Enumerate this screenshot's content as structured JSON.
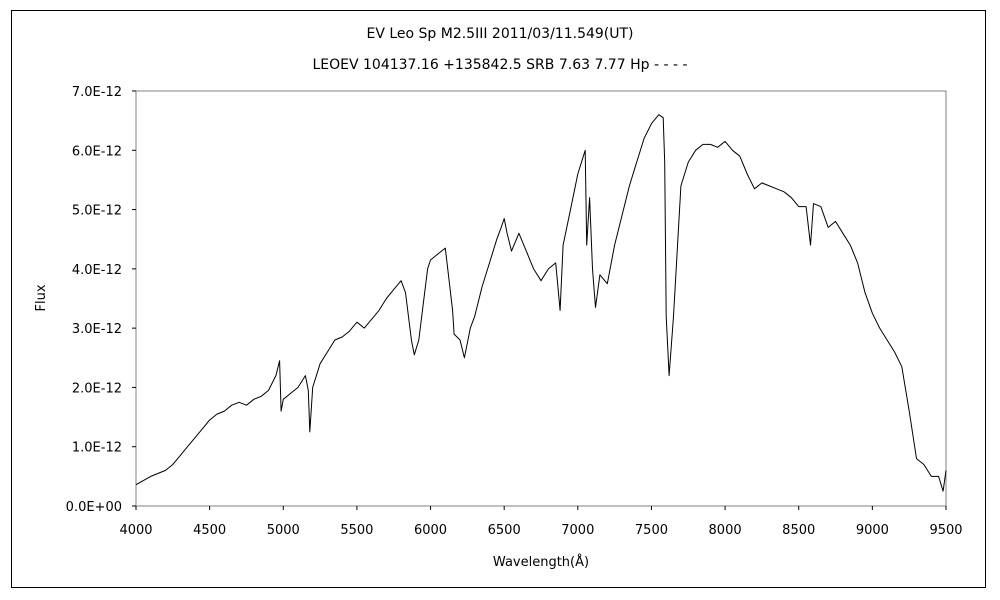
{
  "chart_data": {
    "type": "line",
    "title": "EV Leo    Sp M2.5III    2011/03/11.549(UT)",
    "subtitle": "LEOEV 104137.16 +135842.5 SRB 7.63 7.77 Hp - - - -",
    "xlabel": "Wavelength(Å)",
    "ylabel": "Flux",
    "xlim": [
      4000,
      9500
    ],
    "ylim": [
      0,
      7e-12
    ],
    "grid": false,
    "x_ticks": [
      "4000",
      "4500",
      "5000",
      "5500",
      "6000",
      "6500",
      "7000",
      "7500",
      "8000",
      "8500",
      "9000",
      "9500"
    ],
    "y_ticks": [
      "0.0E+00",
      "1.0E-12",
      "2.0E-12",
      "3.0E-12",
      "4.0E-12",
      "5.0E-12",
      "6.0E-12",
      "7.0E-12"
    ],
    "series": [
      {
        "color": "#000000",
        "x": [
          4000,
          4100,
          4200,
          4250,
          4300,
          4350,
          4400,
          4450,
          4500,
          4550,
          4600,
          4650,
          4700,
          4750,
          4800,
          4850,
          4900,
          4950,
          4975,
          4985,
          5000,
          5050,
          5100,
          5150,
          5170,
          5180,
          5200,
          5250,
          5300,
          5350,
          5400,
          5450,
          5500,
          5550,
          5600,
          5650,
          5700,
          5750,
          5800,
          5830,
          5870,
          5890,
          5920,
          5950,
          5980,
          6000,
          6050,
          6100,
          6150,
          6160,
          6200,
          6230,
          6270,
          6300,
          6350,
          6400,
          6450,
          6480,
          6500,
          6520,
          6550,
          6600,
          6650,
          6700,
          6750,
          6800,
          6850,
          6880,
          6900,
          6950,
          7000,
          7050,
          7060,
          7080,
          7100,
          7120,
          7150,
          7200,
          7250,
          7300,
          7350,
          7400,
          7450,
          7500,
          7550,
          7580,
          7590,
          7600,
          7620,
          7650,
          7700,
          7750,
          7800,
          7850,
          7900,
          7950,
          8000,
          8050,
          8100,
          8150,
          8200,
          8250,
          8300,
          8350,
          8400,
          8450,
          8500,
          8550,
          8580,
          8600,
          8650,
          8700,
          8750,
          8800,
          8850,
          8900,
          8950,
          9000,
          9050,
          9100,
          9150,
          9200,
          9250,
          9300,
          9350,
          9400,
          9450,
          9480,
          9500
        ],
        "y": [
          3.6e-13,
          5e-13,
          6e-13,
          7e-13,
          8.5e-13,
          1e-12,
          1.15e-12,
          1.3e-12,
          1.45e-12,
          1.55e-12,
          1.6e-12,
          1.7e-12,
          1.75e-12,
          1.7e-12,
          1.8e-12,
          1.85e-12,
          1.95e-12,
          2.2e-12,
          2.45e-12,
          1.6e-12,
          1.8e-12,
          1.9e-12,
          2e-12,
          2.2e-12,
          1.95e-12,
          1.25e-12,
          2e-12,
          2.4e-12,
          2.6e-12,
          2.8e-12,
          2.85e-12,
          2.95e-12,
          3.1e-12,
          3e-12,
          3.15e-12,
          3.3e-12,
          3.5e-12,
          3.65e-12,
          3.8e-12,
          3.6e-12,
          2.8e-12,
          2.55e-12,
          2.8e-12,
          3.4e-12,
          4e-12,
          4.15e-12,
          4.25e-12,
          4.35e-12,
          3.3e-12,
          2.9e-12,
          2.8e-12,
          2.5e-12,
          3e-12,
          3.2e-12,
          3.7e-12,
          4.1e-12,
          4.5e-12,
          4.7e-12,
          4.85e-12,
          4.6e-12,
          4.3e-12,
          4.6e-12,
          4.3e-12,
          4e-12,
          3.8e-12,
          4e-12,
          4.1e-12,
          3.3e-12,
          4.4e-12,
          5e-12,
          5.6e-12,
          6e-12,
          4.4e-12,
          5.2e-12,
          4e-12,
          3.35e-12,
          3.9e-12,
          3.75e-12,
          4.4e-12,
          4.9e-12,
          5.4e-12,
          5.8e-12,
          6.2e-12,
          6.45e-12,
          6.6e-12,
          6.55e-12,
          5.8e-12,
          3.2e-12,
          2.2e-12,
          3.2e-12,
          5.4e-12,
          5.8e-12,
          6e-12,
          6.1e-12,
          6.1e-12,
          6.05e-12,
          6.15e-12,
          6e-12,
          5.9e-12,
          5.6e-12,
          5.35e-12,
          5.45e-12,
          5.4e-12,
          5.35e-12,
          5.3e-12,
          5.2e-12,
          5.05e-12,
          5.05e-12,
          4.4e-12,
          5.1e-12,
          5.05e-12,
          4.7e-12,
          4.8e-12,
          4.6e-12,
          4.4e-12,
          4.1e-12,
          3.6e-12,
          3.25e-12,
          3e-12,
          2.8e-12,
          2.6e-12,
          2.35e-12,
          1.6e-12,
          8e-13,
          7e-13,
          5e-13,
          5e-13,
          2.5e-13,
          6e-13
        ]
      }
    ]
  }
}
